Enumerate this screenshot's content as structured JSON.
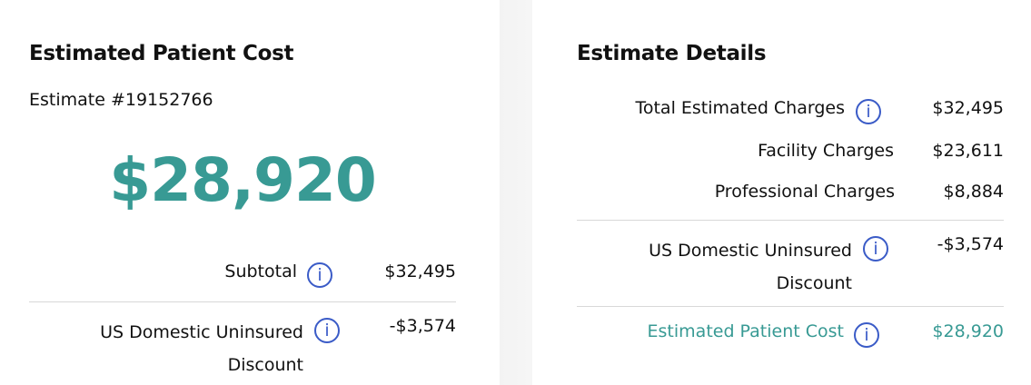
{
  "left": {
    "title": "Estimated Patient Cost",
    "estimate_number": "Estimate #19152766",
    "total": "$28,920",
    "rows": [
      {
        "label": "Subtotal",
        "value": "$32,495"
      },
      {
        "label_line1": "US Domestic Uninsured",
        "label_line2": "Discount",
        "value": "-$3,574"
      }
    ]
  },
  "right": {
    "title": "Estimate Details",
    "rows": [
      {
        "label": "Total Estimated Charges",
        "value": "$32,495"
      },
      {
        "label": "Facility Charges",
        "value": "$23,611"
      },
      {
        "label": "Professional Charges",
        "value": "$8,884"
      },
      {
        "label_line1": "US Domestic Uninsured",
        "label_line2": "Discount",
        "value": "-$3,574"
      },
      {
        "label": "Estimated Patient Cost",
        "value": "$28,920"
      }
    ]
  },
  "icons": {
    "info": "i"
  },
  "colors": {
    "accent": "#389a94",
    "info": "#3a5bc7"
  }
}
